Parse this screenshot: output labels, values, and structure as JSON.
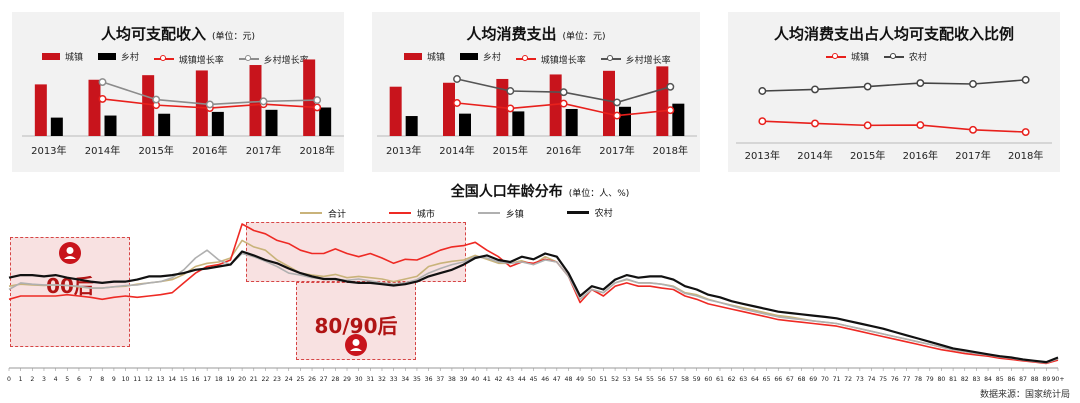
{
  "colors": {
    "urban": "#c8141c",
    "rural": "#000000",
    "urban_rate": "#e8201c",
    "rural_rate": "#8c8c8c",
    "total": "#c9b37a",
    "town": "#b0b0b0",
    "city": "#ee2a24",
    "village": "#111111"
  },
  "chart_data": [
    {
      "type": "bar",
      "title": "人均可支配收入",
      "unit": "(单位：元)",
      "categories": [
        "2013年",
        "2014年",
        "2015年",
        "2016年",
        "2017年",
        "2018年"
      ],
      "series": [
        {
          "name": "城镇",
          "type": "bar",
          "values": [
            26467,
            28844,
            31195,
            33616,
            36396,
            39251
          ]
        },
        {
          "name": "乡村",
          "type": "bar",
          "values": [
            9430,
            10489,
            11422,
            12363,
            13432,
            14617
          ]
        },
        {
          "name": "城镇增长率",
          "type": "line",
          "values": [
            null,
            8.98,
            8.15,
            7.76,
            8.27,
            7.84
          ]
        },
        {
          "name": "乡村增长率",
          "type": "line",
          "values": [
            null,
            11.23,
            8.89,
            8.24,
            8.65,
            8.82
          ]
        }
      ]
    },
    {
      "type": "bar",
      "title": "人均消费支出",
      "unit": "(单位：元)",
      "categories": [
        "2013年",
        "2014年",
        "2015年",
        "2016年",
        "2017年",
        "2018年"
      ],
      "series": [
        {
          "name": "城镇",
          "type": "bar",
          "values": [
            18488,
            19968,
            21392,
            23079,
            24445,
            26112
          ]
        },
        {
          "name": "乡村",
          "type": "bar",
          "values": [
            7485,
            8383,
            9223,
            10130,
            10955,
            12124
          ]
        },
        {
          "name": "城镇增长率",
          "type": "line",
          "values": [
            null,
            8.0,
            7.1,
            7.9,
            5.9,
            6.8
          ]
        },
        {
          "name": "乡村增长率",
          "type": "line",
          "values": [
            null,
            12.0,
            10.0,
            9.8,
            8.1,
            10.7
          ]
        }
      ]
    },
    {
      "type": "line",
      "title": "人均消费支出占人均可支配收入比例",
      "categories": [
        "2013年",
        "2014年",
        "2015年",
        "2016年",
        "2017年",
        "2018年"
      ],
      "series": [
        {
          "name": "城镇",
          "values": [
            69.9,
            69.2,
            68.6,
            68.7,
            67.2,
            66.5
          ]
        },
        {
          "name": "农村",
          "values": [
            79.4,
            79.9,
            80.8,
            81.9,
            81.6,
            82.9
          ]
        }
      ]
    },
    {
      "type": "line",
      "title": "全国人口年龄分布",
      "unit": "(单位：人、%)",
      "x_labels": [
        "0",
        "1",
        "2",
        "3",
        "4",
        "5",
        "6",
        "7",
        "8",
        "9",
        "10",
        "11",
        "12",
        "13",
        "14",
        "15",
        "16",
        "17",
        "18",
        "19",
        "20",
        "21",
        "22",
        "23",
        "24",
        "25",
        "26",
        "27",
        "28",
        "29",
        "30",
        "31",
        "32",
        "33",
        "34",
        "35",
        "36",
        "37",
        "38",
        "39",
        "40",
        "41",
        "42",
        "43",
        "44",
        "45",
        "46",
        "47",
        "48",
        "49",
        "50",
        "51",
        "52",
        "53",
        "54",
        "55",
        "56",
        "57",
        "58",
        "59",
        "60",
        "61",
        "62",
        "63",
        "64",
        "65",
        "66",
        "67",
        "68",
        "69",
        "70",
        "71",
        "72",
        "73",
        "74",
        "75",
        "76",
        "77",
        "78",
        "79",
        "80",
        "81",
        "82",
        "83",
        "84",
        "85",
        "86",
        "87",
        "88",
        "89",
        "90+"
      ],
      "series": [
        {
          "name": "合计",
          "values": [
            1.25,
            1.28,
            1.27,
            1.26,
            1.27,
            1.26,
            1.24,
            1.22,
            1.22,
            1.24,
            1.25,
            1.28,
            1.3,
            1.32,
            1.35,
            1.43,
            1.55,
            1.6,
            1.62,
            1.68,
            1.95,
            1.85,
            1.8,
            1.65,
            1.55,
            1.45,
            1.42,
            1.4,
            1.43,
            1.38,
            1.4,
            1.38,
            1.36,
            1.32,
            1.36,
            1.4,
            1.55,
            1.6,
            1.63,
            1.65,
            1.72,
            1.66,
            1.6,
            1.6,
            1.64,
            1.58,
            1.7,
            1.62,
            1.4,
            1.05,
            1.2,
            1.15,
            1.3,
            1.35,
            1.3,
            1.3,
            1.28,
            1.25,
            1.15,
            1.12,
            1.05,
            1.0,
            0.96,
            0.92,
            0.88,
            0.84,
            0.8,
            0.78,
            0.75,
            0.72,
            0.7,
            0.68,
            0.64,
            0.6,
            0.56,
            0.52,
            0.48,
            0.44,
            0.4,
            0.36,
            0.32,
            0.28,
            0.25,
            0.22,
            0.2,
            0.17,
            0.15,
            0.12,
            0.1,
            0.08,
            0.14
          ]
        },
        {
          "name": "城市",
          "values": [
            1.05,
            1.1,
            1.1,
            1.1,
            1.1,
            1.12,
            1.1,
            1.08,
            1.05,
            1.08,
            1.1,
            1.08,
            1.1,
            1.12,
            1.15,
            1.3,
            1.45,
            1.55,
            1.58,
            1.65,
            2.2,
            2.1,
            2.05,
            1.95,
            1.9,
            1.8,
            1.75,
            1.75,
            1.82,
            1.75,
            1.7,
            1.75,
            1.68,
            1.6,
            1.66,
            1.65,
            1.72,
            1.8,
            1.85,
            1.87,
            1.92,
            1.8,
            1.7,
            1.55,
            1.62,
            1.6,
            1.66,
            1.62,
            1.4,
            1.0,
            1.2,
            1.1,
            1.25,
            1.3,
            1.25,
            1.25,
            1.22,
            1.2,
            1.1,
            1.05,
            0.98,
            0.94,
            0.9,
            0.86,
            0.82,
            0.78,
            0.74,
            0.72,
            0.7,
            0.68,
            0.66,
            0.64,
            0.6,
            0.56,
            0.52,
            0.48,
            0.44,
            0.4,
            0.36,
            0.32,
            0.28,
            0.25,
            0.22,
            0.2,
            0.18,
            0.15,
            0.13,
            0.11,
            0.09,
            0.07,
            0.12
          ]
        },
        {
          "name": "乡镇",
          "values": [
            1.2,
            1.3,
            1.28,
            1.27,
            1.27,
            1.26,
            1.25,
            1.22,
            1.22,
            1.24,
            1.26,
            1.27,
            1.3,
            1.32,
            1.38,
            1.5,
            1.68,
            1.8,
            1.65,
            1.58,
            1.75,
            1.7,
            1.63,
            1.55,
            1.45,
            1.42,
            1.38,
            1.36,
            1.36,
            1.34,
            1.36,
            1.33,
            1.3,
            1.28,
            1.3,
            1.35,
            1.45,
            1.52,
            1.58,
            1.62,
            1.7,
            1.68,
            1.62,
            1.6,
            1.62,
            1.58,
            1.65,
            1.62,
            1.4,
            1.05,
            1.2,
            1.15,
            1.3,
            1.36,
            1.3,
            1.3,
            1.28,
            1.24,
            1.14,
            1.1,
            1.04,
            1.0,
            0.95,
            0.9,
            0.86,
            0.82,
            0.78,
            0.76,
            0.74,
            0.72,
            0.7,
            0.68,
            0.64,
            0.6,
            0.56,
            0.52,
            0.48,
            0.44,
            0.4,
            0.36,
            0.32,
            0.28,
            0.25,
            0.22,
            0.2,
            0.17,
            0.15,
            0.12,
            0.1,
            0.08,
            0.14
          ]
        },
        {
          "name": "农村",
          "values": [
            1.38,
            1.42,
            1.42,
            1.4,
            1.42,
            1.38,
            1.35,
            1.32,
            1.3,
            1.32,
            1.32,
            1.35,
            1.4,
            1.4,
            1.42,
            1.45,
            1.5,
            1.52,
            1.55,
            1.58,
            1.78,
            1.72,
            1.65,
            1.6,
            1.52,
            1.45,
            1.4,
            1.36,
            1.36,
            1.32,
            1.3,
            1.3,
            1.28,
            1.26,
            1.28,
            1.32,
            1.4,
            1.45,
            1.5,
            1.58,
            1.68,
            1.72,
            1.65,
            1.62,
            1.7,
            1.66,
            1.75,
            1.7,
            1.45,
            1.1,
            1.25,
            1.2,
            1.35,
            1.42,
            1.38,
            1.4,
            1.4,
            1.35,
            1.25,
            1.2,
            1.12,
            1.08,
            1.02,
            0.98,
            0.94,
            0.9,
            0.86,
            0.84,
            0.82,
            0.8,
            0.78,
            0.76,
            0.72,
            0.68,
            0.64,
            0.6,
            0.55,
            0.5,
            0.45,
            0.4,
            0.35,
            0.3,
            0.27,
            0.24,
            0.21,
            0.18,
            0.16,
            0.13,
            0.11,
            0.09,
            0.16
          ]
        }
      ]
    }
  ],
  "annotations": {
    "gen00": "00后",
    "gen8090": "80/90后"
  },
  "source": "数据来源：国家统计局"
}
